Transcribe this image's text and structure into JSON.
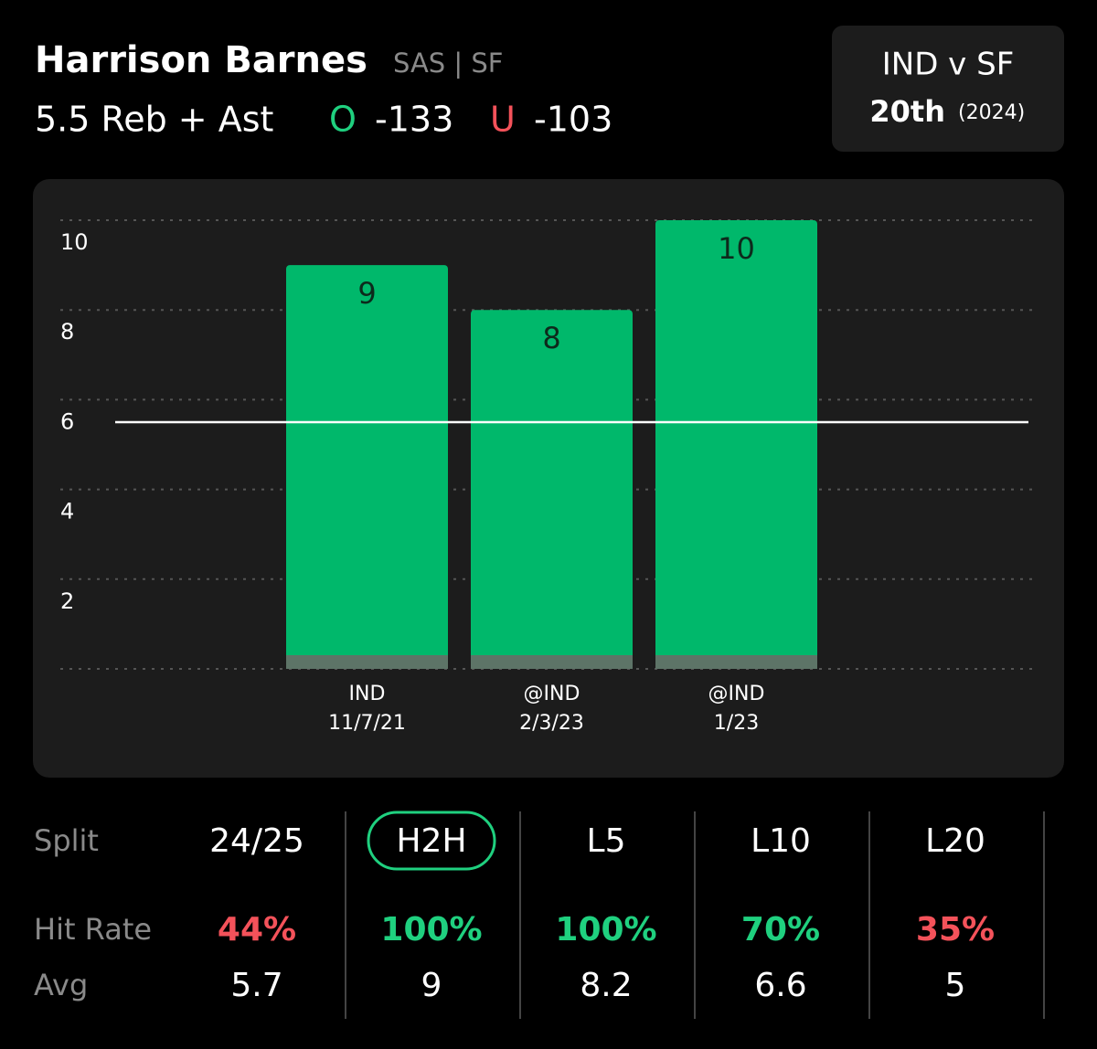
{
  "header": {
    "player": "Harrison Barnes",
    "team": "SAS | SF",
    "line": "5.5 Reb + Ast",
    "over_label": "O",
    "over_odds": "-133",
    "under_label": "U",
    "under_odds": "-103"
  },
  "matchup": {
    "title": "IND v SF",
    "rank": "20th",
    "season": "(2024)"
  },
  "chart_data": {
    "type": "bar",
    "categories": [
      "IND",
      "@IND",
      "@IND"
    ],
    "dates": [
      "11/7/21",
      "2/3/23",
      "1/23"
    ],
    "values": [
      9,
      8,
      10
    ],
    "color": "#00b86b",
    "ylim": [
      0,
      10
    ],
    "yticks": [
      2,
      4,
      6,
      8,
      10
    ],
    "grid": true,
    "line_value": 5.5
  },
  "table": {
    "split_label": "Split",
    "columns": [
      "24/25",
      "H2H",
      "L5",
      "L10",
      "L20"
    ],
    "selected": 1,
    "rows": [
      {
        "label": "Hit Rate",
        "values": [
          "44%",
          "100%",
          "100%",
          "70%",
          "35%"
        ],
        "colors": [
          "#f4525a",
          "#1fd07f",
          "#1fd07f",
          "#1fd07f",
          "#f4525a"
        ]
      },
      {
        "label": "Avg",
        "values": [
          "5.7",
          "9",
          "8.2",
          "6.6",
          "5"
        ]
      }
    ]
  }
}
